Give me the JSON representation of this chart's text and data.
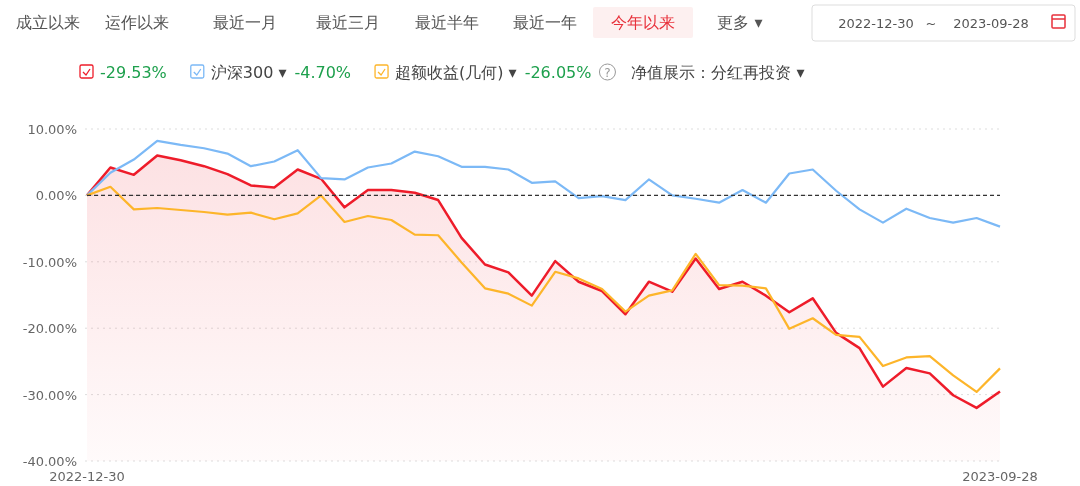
{
  "chart_data": {
    "type": "line",
    "categories": [
      "2022-12-30",
      null,
      null,
      null,
      null,
      null,
      null,
      null,
      null,
      null,
      null,
      null,
      null,
      null,
      null,
      null,
      null,
      null,
      null,
      null,
      null,
      null,
      null,
      null,
      null,
      null,
      null,
      null,
      null,
      null,
      null,
      null,
      null,
      null,
      null,
      null,
      null,
      null,
      null,
      "2023-09-28"
    ],
    "series": [
      {
        "color": "#ee1c2a",
        "values": [
          0,
          4.2,
          3.1,
          6.0,
          5.3,
          4.4,
          3.2,
          1.5,
          1.2,
          3.9,
          2.5,
          -1.8,
          0.8,
          0.8,
          0.4,
          -0.7,
          -6.4,
          -10.4,
          -11.6,
          -15.1,
          -9.9,
          -13.0,
          -14.4,
          -17.9,
          -13.0,
          -14.5,
          -9.5,
          -14.1,
          -13.0,
          -15.1,
          -17.6,
          -15.5,
          -20.7,
          -23.0,
          -28.8,
          -26.0,
          -26.8,
          -30.1,
          -32.0,
          -29.53
        ]
      },
      {
        "name": "沪深300 ▾",
        "color": "#7cb9f6",
        "values": [
          0,
          3.4,
          5.4,
          8.2,
          7.6,
          7.1,
          6.3,
          4.4,
          5.1,
          6.8,
          2.6,
          2.4,
          4.2,
          4.8,
          6.6,
          5.9,
          4.3,
          4.3,
          3.9,
          1.9,
          2.1,
          -0.4,
          -0.1,
          -0.7,
          2.4,
          0,
          -0.5,
          -1.1,
          0.8,
          -1.1,
          3.3,
          3.9,
          0.7,
          -2.1,
          -4.1,
          -2.0,
          -3.4,
          -4.1,
          -3.4,
          -4.7
        ]
      },
      {
        "name": "超额收益(几何) ▾",
        "color": "#fdb52a",
        "values": [
          0,
          1.3,
          -2.1,
          -1.9,
          -2.2,
          -2.5,
          -2.9,
          -2.6,
          -3.6,
          -2.7,
          0,
          -4.0,
          -3.1,
          -3.7,
          -5.9,
          -6.0,
          -10.1,
          -14.0,
          -14.8,
          -16.6,
          -11.5,
          -12.5,
          -14.1,
          -17.5,
          -15.1,
          -14.3,
          -8.8,
          -13.5,
          -13.6,
          -14.0,
          -20.1,
          -18.5,
          -21.0,
          -21.3,
          -25.7,
          -24.4,
          -24.2,
          -27.1,
          -29.6,
          -26.05
        ]
      }
    ],
    "ylim": [
      -40,
      10
    ],
    "yticks": [
      {
        "value": 10,
        "label": "10.00%"
      },
      {
        "value": 0,
        "label": "0.00%"
      },
      {
        "value": -10,
        "label": "-10.00%"
      },
      {
        "value": -20,
        "label": "-20.00%"
      },
      {
        "value": -30,
        "label": "-30.00%"
      },
      {
        "value": -40,
        "label": "-40.00%"
      }
    ],
    "grid": "y",
    "ref_lines": [
      {
        "axis": "y",
        "value": 0,
        "color": "#333333",
        "line_style": "dashed"
      }
    ],
    "legend": "top",
    "annotations": [
      "成立以来",
      "运作以来",
      "最近一月",
      "最近三月",
      "最近半年",
      "最近一年",
      "今年以来",
      "更多 ▾",
      "2022-12-30",
      "~",
      "2023-09-28",
      "-29.53%",
      "-4.70%",
      "-26.05%",
      "?",
      "净值展示：分红再投资 ▾"
    ]
  }
}
